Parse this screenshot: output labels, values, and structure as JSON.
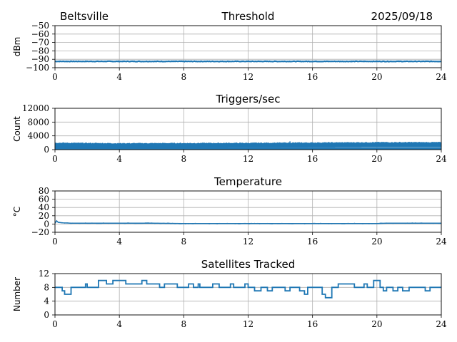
{
  "header": {
    "location": "Beltsville",
    "date": "2025/09/18"
  },
  "chart_data": [
    {
      "type": "line",
      "title": "Threshold",
      "ylabel": "dBm",
      "xlim": [
        0,
        24
      ],
      "ylim": [
        -100,
        -50
      ],
      "xticks": [
        "0",
        "4",
        "8",
        "12",
        "16",
        "20",
        "24"
      ],
      "yticks": [
        "−50",
        "−60",
        "−70",
        "−80",
        "−90",
        "−100"
      ],
      "grid": true,
      "color": "#1f77b4",
      "series": [
        {
          "x": [
            0,
            24
          ],
          "y": [
            -92.5,
            -92.5
          ],
          "noise": 0.6
        }
      ]
    },
    {
      "type": "line",
      "title": "Triggers/sec",
      "ylabel": "Count",
      "xlim": [
        0,
        24
      ],
      "ylim": [
        0,
        12000
      ],
      "xticks": [
        "0",
        "4",
        "8",
        "12",
        "16",
        "20",
        "24"
      ],
      "yticks": [
        "12000",
        "8000",
        "4000",
        "0"
      ],
      "grid": true,
      "color": "#1f77b4",
      "series": [
        {
          "x": [
            0,
            4,
            8,
            12,
            16,
            20,
            24
          ],
          "y": [
            700,
            650,
            700,
            750,
            800,
            850,
            850
          ],
          "band_top": [
            1800,
            1650,
            1700,
            1750,
            1850,
            1950,
            1950
          ],
          "peak": {
            "x": 14.6,
            "y": 2400
          }
        }
      ]
    },
    {
      "type": "line",
      "title": "Temperature",
      "ylabel": "°C",
      "xlim": [
        0,
        24
      ],
      "ylim": [
        -20,
        80
      ],
      "xticks": [
        "0",
        "4",
        "8",
        "12",
        "16",
        "20",
        "24"
      ],
      "yticks": [
        "80",
        "60",
        "40",
        "20",
        "0",
        "−20"
      ],
      "grid": true,
      "color": "#1f77b4",
      "series": [
        {
          "x": [
            0,
            0.1,
            0.2,
            0.5,
            1,
            2,
            4,
            6,
            8,
            10,
            12,
            14,
            16,
            18,
            20,
            20.6,
            22,
            24
          ],
          "y": [
            2,
            8,
            4,
            3,
            2,
            2,
            2,
            2,
            1,
            1,
            1,
            1,
            1,
            1,
            1,
            2,
            2,
            2
          ]
        }
      ]
    },
    {
      "type": "line",
      "title": "Satellites Tracked",
      "ylabel": "Number",
      "xlim": [
        0,
        24
      ],
      "ylim": [
        0,
        12
      ],
      "xticks": [
        "0",
        "4",
        "8",
        "12",
        "16",
        "20",
        "24"
      ],
      "yticks": [
        "12",
        "8",
        "4",
        "0"
      ],
      "grid": true,
      "color": "#1f77b4",
      "series": [
        {
          "x": [
            0,
            0.3,
            0.45,
            0.6,
            0.9,
            1.0,
            1.8,
            1.9,
            2.0,
            2.6,
            2.7,
            3.0,
            3.2,
            3.5,
            3.6,
            4.0,
            4.2,
            4.4,
            5.0,
            5.4,
            5.5,
            5.7,
            6.2,
            6.5,
            6.8,
            7.4,
            7.6,
            8.0,
            8.3,
            8.6,
            8.9,
            9.0,
            9.6,
            9.8,
            10.2,
            10.4,
            10.9,
            11.1,
            11.7,
            11.8,
            12.0,
            12.4,
            12.8,
            13.2,
            13.5,
            13.7,
            14.3,
            14.6,
            15.2,
            15.5,
            15.7,
            16.2,
            16.6,
            16.8,
            17.2,
            17.6,
            18.4,
            18.6,
            19.2,
            19.4,
            19.8,
            20.2,
            20.4,
            20.6,
            21.0,
            21.3,
            21.6,
            22.0,
            22.6,
            23.0,
            23.3,
            23.6,
            24.0
          ],
          "y": [
            8,
            8,
            7,
            6,
            6,
            8,
            8,
            9,
            8,
            8,
            10,
            10,
            9,
            9,
            10,
            10,
            10,
            9,
            9,
            10,
            10,
            9,
            9,
            8,
            9,
            9,
            8,
            8,
            9,
            8,
            9,
            8,
            8,
            9,
            8,
            8,
            9,
            8,
            8,
            9,
            8,
            7,
            8,
            7,
            8,
            8,
            7,
            8,
            7,
            6,
            8,
            8,
            6,
            5,
            8,
            9,
            9,
            8,
            9,
            8,
            10,
            8,
            7,
            8,
            7,
            8,
            7,
            8,
            8,
            7,
            8,
            8,
            8
          ]
        }
      ]
    }
  ]
}
